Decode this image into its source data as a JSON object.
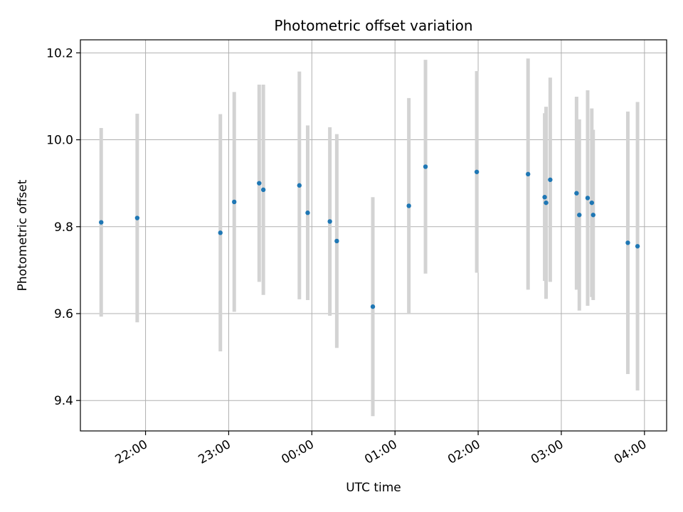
{
  "chart_data": {
    "type": "scatter",
    "title": "Photometric offset variation",
    "xlabel": "UTC time",
    "ylabel": "Photometric offset",
    "x_tick_labels": [
      "22:00",
      "23:00",
      "00:00",
      "01:00",
      "02:00",
      "03:00",
      "04:00"
    ],
    "y_tick_labels": [
      "9.4",
      "9.6",
      "9.8",
      "10.0",
      "10.2"
    ],
    "y_ticks": [
      9.4,
      9.6,
      9.8,
      10.0,
      10.2
    ],
    "ylim": [
      9.33,
      10.23
    ],
    "xlim": [
      "21:13",
      "04:16"
    ],
    "grid": true,
    "colors": {
      "point": "#1f77b4",
      "errorbar": "#d3d3d3",
      "grid": "#b0b0b0"
    },
    "series": [
      {
        "points": [
          {
            "x": "21:28",
            "y": 9.81,
            "yerr": 0.217
          },
          {
            "x": "21:54",
            "y": 9.82,
            "yerr": 0.24
          },
          {
            "x": "22:54",
            "y": 9.786,
            "yerr": 0.273
          },
          {
            "x": "23:04",
            "y": 9.857,
            "yerr": 0.253
          },
          {
            "x": "23:22",
            "y": 9.9,
            "yerr": 0.227
          },
          {
            "x": "23:25",
            "y": 9.885,
            "yerr": 0.242
          },
          {
            "x": "23:51",
            "y": 9.895,
            "yerr": 0.262
          },
          {
            "x": "23:57",
            "y": 9.832,
            "yerr": 0.201
          },
          {
            "x": "00:13",
            "y": 9.812,
            "yerr": 0.217
          },
          {
            "x": "00:18",
            "y": 9.767,
            "yerr": 0.246
          },
          {
            "x": "00:44",
            "y": 9.616,
            "yerr": 0.252
          },
          {
            "x": "01:10",
            "y": 9.848,
            "yerr": 0.248
          },
          {
            "x": "01:22",
            "y": 9.938,
            "yerr": 0.246
          },
          {
            "x": "01:59",
            "y": 9.926,
            "yerr": 0.232
          },
          {
            "x": "02:36",
            "y": 9.921,
            "yerr": 0.266
          },
          {
            "x": "02:48",
            "y": 9.868,
            "yerr": 0.193
          },
          {
            "x": "02:49",
            "y": 9.855,
            "yerr": 0.221
          },
          {
            "x": "02:52",
            "y": 9.908,
            "yerr": 0.235
          },
          {
            "x": "03:11",
            "y": 9.877,
            "yerr": 0.222
          },
          {
            "x": "03:13",
            "y": 9.827,
            "yerr": 0.22
          },
          {
            "x": "03:19",
            "y": 9.866,
            "yerr": 0.248
          },
          {
            "x": "03:22",
            "y": 9.855,
            "yerr": 0.217
          },
          {
            "x": "03:23",
            "y": 9.827,
            "yerr": 0.196
          },
          {
            "x": "03:48",
            "y": 9.763,
            "yerr": 0.302
          },
          {
            "x": "03:55",
            "y": 9.755,
            "yerr": 0.332
          }
        ]
      }
    ]
  }
}
